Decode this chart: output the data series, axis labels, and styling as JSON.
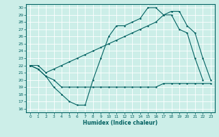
{
  "xlabel": "Humidex (Indice chaleur)",
  "bg_color": "#cceee8",
  "line_color": "#006060",
  "grid_color": "#ffffff",
  "xlim": [
    -0.5,
    23.5
  ],
  "ylim": [
    15.5,
    30.5
  ],
  "yticks": [
    16,
    17,
    18,
    19,
    20,
    21,
    22,
    23,
    24,
    25,
    26,
    27,
    28,
    29,
    30
  ],
  "xticks": [
    0,
    1,
    2,
    3,
    4,
    5,
    6,
    7,
    8,
    9,
    10,
    11,
    12,
    13,
    14,
    15,
    16,
    17,
    18,
    19,
    20,
    21,
    22,
    23
  ],
  "line1_x": [
    0,
    1,
    2,
    3,
    4,
    5,
    6,
    7,
    8,
    9,
    10,
    11,
    12,
    13,
    14,
    15,
    16,
    17,
    18,
    19,
    20,
    21,
    22,
    23
  ],
  "line1_y": [
    22.0,
    21.5,
    20.5,
    20.0,
    19.0,
    19.0,
    19.0,
    19.0,
    19.0,
    19.0,
    19.0,
    19.0,
    19.0,
    19.0,
    19.0,
    19.0,
    19.0,
    19.5,
    19.5,
    19.5,
    19.5,
    19.5,
    19.5,
    19.5
  ],
  "line2_x": [
    0,
    1,
    2,
    3,
    4,
    5,
    6,
    7,
    8,
    9,
    10,
    11,
    12,
    13,
    14,
    15,
    16,
    17,
    18,
    19,
    20,
    21,
    22
  ],
  "line2_y": [
    22.0,
    21.5,
    20.5,
    19.0,
    18.0,
    17.0,
    16.5,
    16.5,
    20.0,
    23.0,
    26.0,
    27.5,
    27.5,
    28.0,
    28.5,
    30.0,
    30.0,
    29.0,
    29.0,
    27.0,
    26.5,
    23.0,
    20.0
  ],
  "line3_x": [
    0,
    1,
    2,
    3,
    4,
    5,
    6,
    7,
    8,
    9,
    10,
    11,
    12,
    13,
    14,
    15,
    16,
    17,
    18,
    19,
    20,
    21,
    22,
    23
  ],
  "line3_y": [
    22.0,
    22.0,
    21.0,
    21.5,
    22.0,
    22.5,
    23.0,
    23.5,
    24.0,
    24.5,
    25.0,
    25.5,
    26.0,
    26.5,
    27.0,
    27.5,
    28.0,
    29.0,
    29.5,
    29.5,
    27.5,
    26.5,
    23.0,
    20.0
  ]
}
